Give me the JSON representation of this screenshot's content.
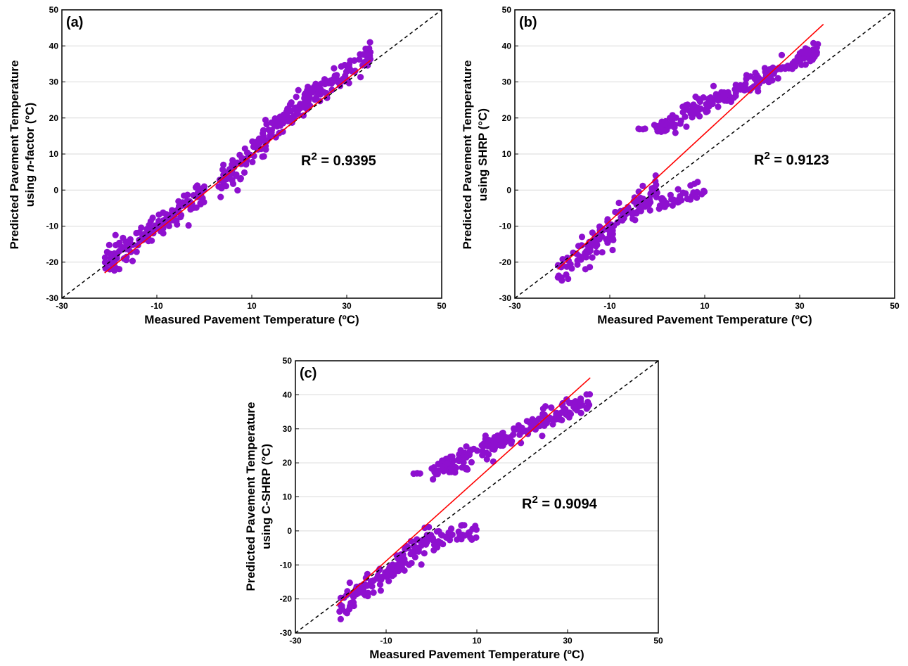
{
  "colors": {
    "points": "#8e10cf",
    "fit_line": "#ff0000",
    "identity_line": "#000000",
    "grid": "#d9d9d9"
  },
  "chart_data": [
    {
      "type": "scatter",
      "panel_label": "(a)",
      "xlabel": "Measured Pavement Temperature (ºC)",
      "ylabel_line1": "Predicted Pavement Temperature",
      "ylabel_line2_pre": "using ",
      "ylabel_line2_italic": "n",
      "ylabel_line2_post": "-factor (°C)",
      "xlim": [
        -30,
        50
      ],
      "ylim": [
        -30,
        50
      ],
      "xticks": [
        "-30",
        "-10",
        "10",
        "30",
        "50"
      ],
      "yticks": [
        "-30",
        "-20",
        "-10",
        "0",
        "10",
        "20",
        "30",
        "40",
        "50"
      ],
      "grid": "horizontal",
      "r2_prefix": "R",
      "r2_sup": "2",
      "r2_value": " = 0.9395",
      "identity_line": {
        "x": [
          -30,
          50
        ],
        "y": [
          -30,
          50
        ]
      },
      "fit_line": {
        "x": [
          -21,
          35
        ],
        "y": [
          -23,
          36
        ]
      },
      "clusters": [
        {
          "n": 150,
          "x_range": [
            -21,
            0
          ],
          "slope": 0.95,
          "intercept": -0.5,
          "spread": 3.2
        },
        {
          "n": 70,
          "x_range": [
            3,
            13
          ],
          "slope": 1.2,
          "intercept": -2,
          "spread": 3.5
        },
        {
          "n": 160,
          "x_range": [
            12,
            35
          ],
          "slope": 1.0,
          "intercept": 3,
          "spread": 3.0
        }
      ]
    },
    {
      "type": "scatter",
      "panel_label": "(b)",
      "xlabel": "Measured Pavement Temperature (ºC)",
      "ylabel_line1": "Predicted Pavement Temperature",
      "ylabel_line2_pre": "using SHRP (°C)",
      "ylabel_line2_italic": "",
      "ylabel_line2_post": "",
      "xlim": [
        -30,
        50
      ],
      "ylim": [
        -30,
        50
      ],
      "xticks": [
        "-30",
        "-10",
        "10",
        "30",
        "50"
      ],
      "yticks": [
        "-30",
        "-20",
        "-10",
        "0",
        "10",
        "20",
        "30",
        "40",
        "50"
      ],
      "grid": "horizontal",
      "r2_prefix": "R",
      "r2_sup": "2",
      "r2_value": " = 0.9123",
      "identity_line": {
        "x": [
          -30,
          50
        ],
        "y": [
          -30,
          50
        ]
      },
      "fit_line": {
        "x": [
          -21,
          35
        ],
        "y": [
          -22,
          46
        ]
      },
      "clusters": [
        {
          "n": 140,
          "x_range": [
            -21,
            0
          ],
          "slope": 1.1,
          "intercept": 0,
          "spread": 3.8
        },
        {
          "n": 40,
          "x_range": [
            0,
            10
          ],
          "slope": 0.4,
          "intercept": -4,
          "spread": 3.0
        },
        {
          "n": 200,
          "x_range": [
            -1,
            35
          ],
          "slope": 0.65,
          "intercept": 17,
          "spread": 2.8
        },
        {
          "n": 4,
          "x_range": [
            -4,
            -2
          ],
          "slope": 0,
          "intercept": 17,
          "spread": 0.2
        }
      ]
    },
    {
      "type": "scatter",
      "panel_label": "(c)",
      "xlabel": "Measured Pavement Temperature (ºC)",
      "ylabel_line1": "Predicted Pavement Temperature",
      "ylabel_line2_pre": "using C-SHRP (°C)",
      "ylabel_line2_italic": "",
      "ylabel_line2_post": "",
      "xlim": [
        -30,
        50
      ],
      "ylim": [
        -30,
        50
      ],
      "xticks": [
        "-30",
        "-10",
        "10",
        "30",
        "50"
      ],
      "yticks": [
        "-30",
        "-20",
        "-10",
        "0",
        "10",
        "20",
        "30",
        "40",
        "50"
      ],
      "grid": "horizontal",
      "r2_prefix": "R",
      "r2_sup": "2",
      "r2_value": " = 0.9094",
      "identity_line": {
        "x": [
          -30,
          50
        ],
        "y": [
          -30,
          50
        ]
      },
      "fit_line": {
        "x": [
          -21,
          35
        ],
        "y": [
          -22,
          45
        ]
      },
      "clusters": [
        {
          "n": 140,
          "x_range": [
            -21,
            0
          ],
          "slope": 1.0,
          "intercept": -2,
          "spread": 3.6
        },
        {
          "n": 40,
          "x_range": [
            0,
            10
          ],
          "slope": 0.3,
          "intercept": -3,
          "spread": 2.8
        },
        {
          "n": 200,
          "x_range": [
            0,
            35
          ],
          "slope": 0.62,
          "intercept": 17,
          "spread": 2.8
        },
        {
          "n": 4,
          "x_range": [
            -4,
            -2
          ],
          "slope": 0,
          "intercept": 17,
          "spread": 0.2
        }
      ]
    }
  ]
}
